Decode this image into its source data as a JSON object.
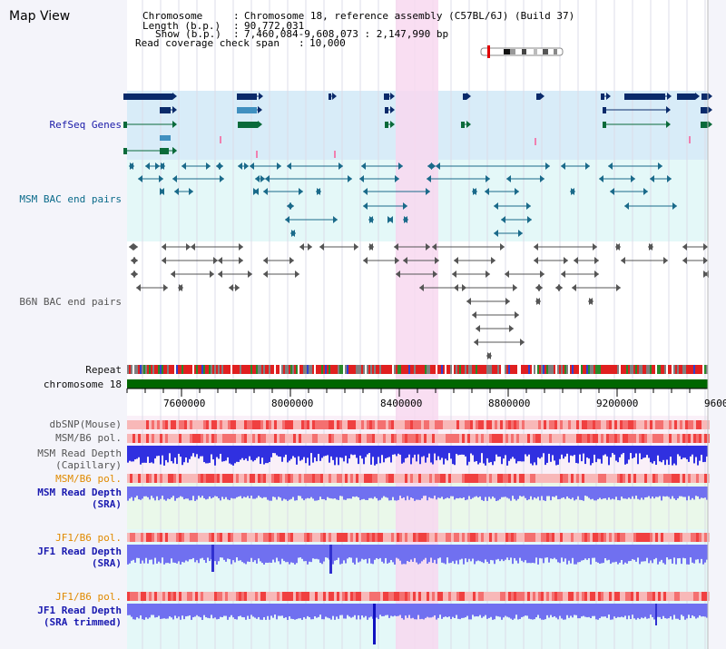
{
  "title": "Map View",
  "header": {
    "chromosome_key": "Chromosome",
    "chromosome_val": "Chromosome 18, reference assembly (C57BL/6J) (Build 37)",
    "length_key": "Length (b.p.)",
    "length_val": "90,772,031",
    "show_key": "Show (b.p.)",
    "show_val": "7,460,084-9,608,073 : 2,147,990 bp",
    "span_key": "Read coverage check span",
    "span_val": "10,000"
  },
  "tracks": {
    "refseq": "RefSeq Genes",
    "msm_bac": "MSM BAC end pairs",
    "b6n_bac": "B6N BAC end pairs",
    "repeat": "Repeat",
    "chromosome": "chromosome 18",
    "dbsnp": "dbSNP(Mouse)",
    "msm_b6_pol_1": "MSM/B6 pol.",
    "msm_read_depth_cap_1": "MSM Read Depth",
    "msm_read_depth_cap_2": "(Capillary)",
    "msm_b6_pol_2": "MSM/B6 pol.",
    "msm_read_depth_sra_1": "MSM Read Depth",
    "msm_read_depth_sra_2": "(SRA)",
    "jf1_b6_pol_1": "JF1/B6 pol.",
    "jf1_read_depth_sra_1": "JF1 Read Depth",
    "jf1_read_depth_sra_2": "(SRA)",
    "jf1_b6_pol_2": "JF1/B6 pol.",
    "jf1_read_depth_trim_1": "JF1 Read Depth",
    "jf1_read_depth_trim_2": "(SRA trimmed)"
  },
  "axis_ticks": [
    "7600000",
    "8000000",
    "8400000",
    "8800000",
    "9200000",
    "9600"
  ],
  "colors": {
    "highlight": "#f8d8f0",
    "refseq_bg": "#d8ecf8",
    "msm_bg": "#e4f8f8",
    "chromosome": "#006600",
    "depth_blue": "#3030e0",
    "depth_light": "#7070f0",
    "snp_red": "#f04040",
    "snp_pink": "#f8b8b8"
  }
}
